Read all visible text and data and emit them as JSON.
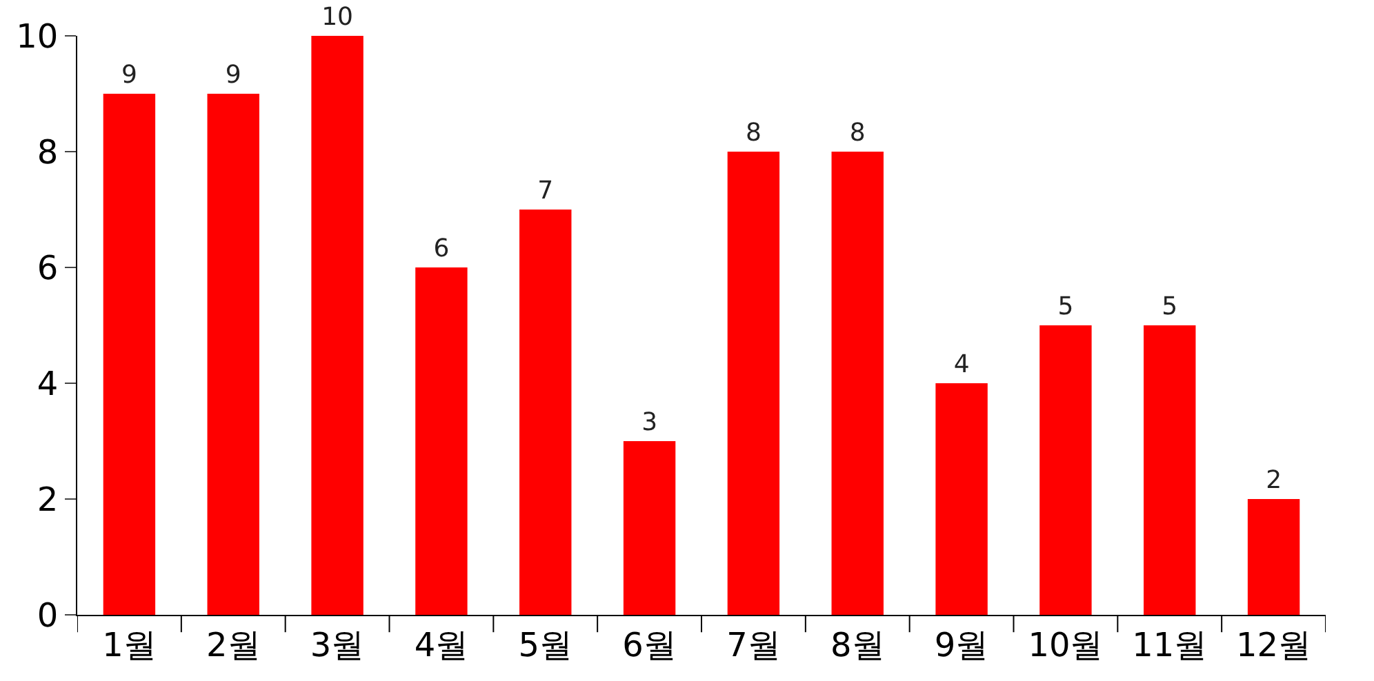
{
  "chart_data": {
    "type": "bar",
    "categories": [
      "1월",
      "2월",
      "3월",
      "4월",
      "5월",
      "6월",
      "7월",
      "8월",
      "9월",
      "10월",
      "11월",
      "12월"
    ],
    "values": [
      9,
      9,
      10,
      6,
      7,
      3,
      8,
      8,
      4,
      5,
      5,
      2
    ],
    "color": "#ff0000",
    "ylim": [
      0,
      10
    ],
    "yticks": [
      0,
      2,
      4,
      6,
      8,
      10
    ],
    "data_labels": true,
    "legend": false
  }
}
